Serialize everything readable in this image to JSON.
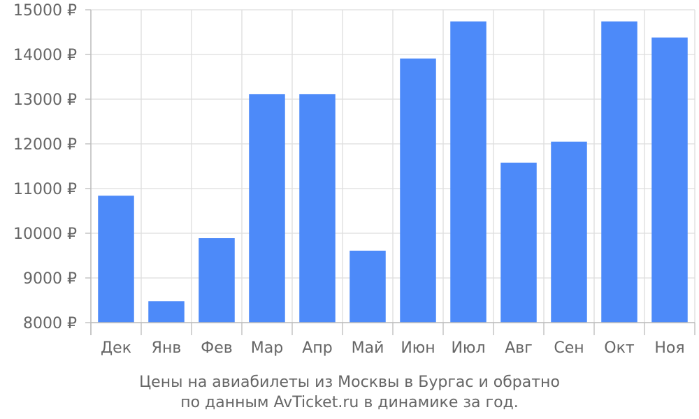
{
  "chart_data": {
    "type": "bar",
    "categories": [
      "Дек",
      "Янв",
      "Фев",
      "Мар",
      "Апр",
      "Май",
      "Июн",
      "Июл",
      "Авг",
      "Сен",
      "Окт",
      "Ноя"
    ],
    "series": [
      {
        "values": [
          10840,
          8480,
          9890,
          13110,
          13110,
          9610,
          13910,
          14740,
          11580,
          12050,
          14740,
          14380
        ]
      }
    ],
    "yticks": [
      8000,
      9000,
      10000,
      11000,
      12000,
      13000,
      14000,
      15000
    ],
    "ytick_labels": [
      "8000 ₽",
      "9000 ₽",
      "10000 ₽",
      "11000 ₽",
      "12000 ₽",
      "13000 ₽",
      "14000 ₽",
      "15000 ₽"
    ],
    "ylim": [
      8000,
      15000
    ],
    "grid": true,
    "bar_color": "#4d8af9",
    "caption_line1": "Цены на авиабилеты из Москвы в Бургас и обратно",
    "caption_line2": "по данным AvTicket.ru в динамике за год."
  }
}
